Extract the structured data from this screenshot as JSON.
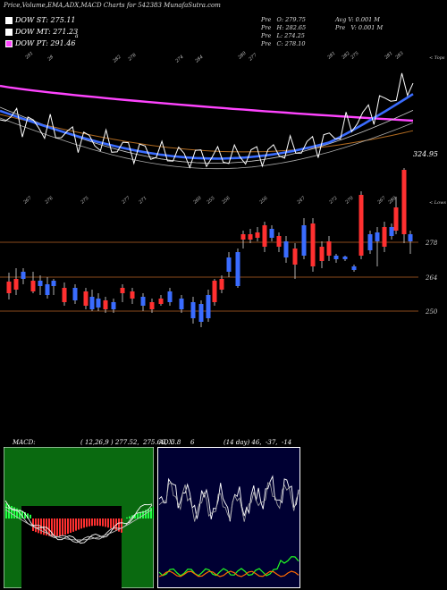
{
  "header": {
    "title": "Price,Volume,EMA,ADX,MACD Charts for 542383 MunafaSutra.com"
  },
  "legend": [
    {
      "label": "DOW ST: 275.11",
      "color": "#ffffff"
    },
    {
      "label": "DOW MT: 271.23",
      "color": "#ffffff"
    },
    {
      "label": "DOW PT: 291.46",
      "color": "#ff44ff"
    }
  ],
  "legend_extra": "a",
  "info": {
    "pre_o": "Pre   O: 279.75",
    "pre_h": "Pre   H: 282.65",
    "pre_l": "Pre   L: 274.25",
    "pre_c": "Pre   C: 278.10",
    "avg_v": "Avg V: 0.001 M",
    "pre_v": "Pre   V: 0.001 M"
  },
  "labels": {
    "tops": "< Tops",
    "lows": "< Lows",
    "ema_value": "324.95"
  },
  "macd": {
    "text": "MACD:",
    "values": "( 12,26,9 ) 277.52,  275.66,  3.8"
  },
  "adx": {
    "text": "ADX",
    "value": "6",
    "values": "(14 day) 46,  -37,  -14"
  },
  "chart_data": {
    "type": "candlestick",
    "price_axis": {
      "ticks": [
        278,
        264,
        250
      ]
    },
    "top_labels": [
      "291",
      "28",
      "282",
      "278",
      "274",
      "284",
      "280",
      "277",
      "281",
      "282",
      "275",
      "281",
      "283"
    ],
    "low_labels": [
      "267",
      "276",
      "275",
      "277",
      "271",
      "260",
      "255",
      "256",
      "256",
      "247",
      "272",
      "270",
      "267",
      "280"
    ],
    "ema_last": 324.95
  }
}
